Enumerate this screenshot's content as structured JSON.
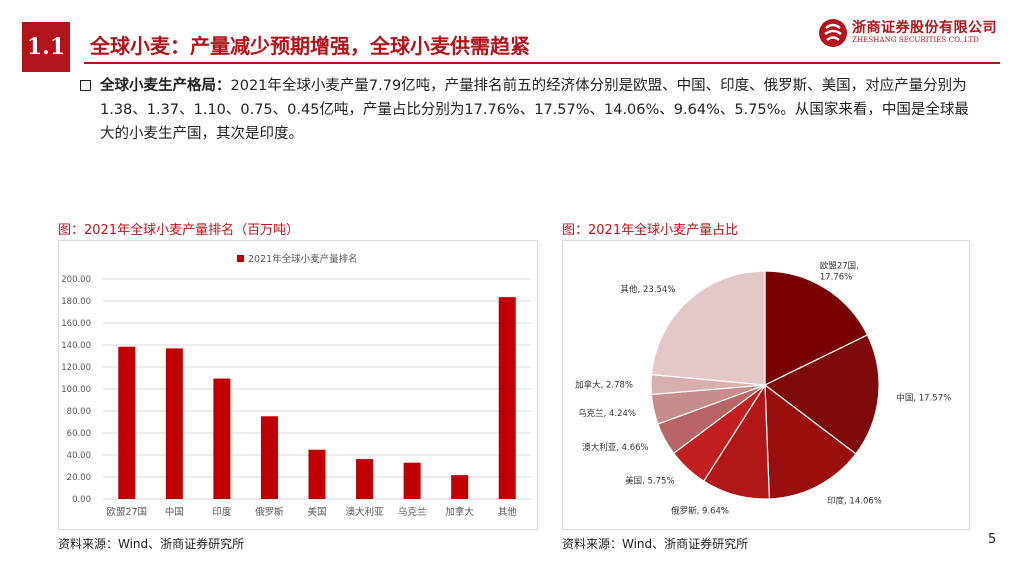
{
  "section_number": "1.1",
  "page_title": "全球小麦：产量减少预期增强，全球小麦供需趋紧",
  "logo": {
    "name_cn": "浙商证券股份有限公司",
    "name_en": "ZHESHANG SECURITIES CO.,LTD"
  },
  "bullet": {
    "heading": "全球小麦生产格局：",
    "text": "2021年全球小麦产量7.79亿吨，产量排名前五的经济体分别是欧盟、中国、印度、俄罗斯、美国，对应产量分别为1.38、1.37、1.10、0.75、0.45亿吨，产量占比分别为17.76%、17.57%、14.06%、9.64%、5.75%。从国家来看，中国是全球最大的小麦生产国，其次是印度。"
  },
  "left_figure": {
    "title": "图：2021年全球小麦产量排名（百万吨）",
    "source": "资料来源：Wind、浙商证券研究所"
  },
  "right_figure": {
    "title": "图：2021年全球小麦产量占比",
    "source": "资料来源：Wind、浙商证券研究所"
  },
  "page_number": "5",
  "colors": {
    "brand_red": "#b3141b",
    "bar_red": "#c00000"
  },
  "chart_data": [
    {
      "type": "bar",
      "categories": [
        "欧盟27国",
        "中国",
        "印度",
        "俄罗斯",
        "美国",
        "澳大利亚",
        "乌克兰",
        "加拿大",
        "其他"
      ],
      "series": [
        {
          "name": "2021年全球小麦产量排名",
          "values": [
            138.4,
            136.9,
            109.5,
            75.2,
            44.8,
            36.3,
            33.0,
            21.7,
            183.5
          ]
        }
      ],
      "yticks": [
        "0.00",
        "20.00",
        "40.00",
        "60.00",
        "80.00",
        "100.00",
        "120.00",
        "140.00",
        "160.00",
        "180.00",
        "200.00"
      ],
      "ylim": [
        0,
        200
      ],
      "grid": true,
      "legend_position": "top-left"
    },
    {
      "type": "pie",
      "slices": [
        {
          "label": "欧盟27国, 17.76%",
          "value": 17.76,
          "color": "#7a0000"
        },
        {
          "label": "中国, 17.57%",
          "value": 17.57,
          "color": "#7f0a0a"
        },
        {
          "label": "印度, 14.06%",
          "value": 14.06,
          "color": "#9b0e0e"
        },
        {
          "label": "俄罗斯, 9.64%",
          "value": 9.64,
          "color": "#b11717"
        },
        {
          "label": "美国, 5.75%",
          "value": 5.75,
          "color": "#c21f1f"
        },
        {
          "label": "澳大利亚, 4.66%",
          "value": 4.66,
          "color": "#b96565"
        },
        {
          "label": "乌克兰, 4.24%",
          "value": 4.24,
          "color": "#c78d8d"
        },
        {
          "label": "加拿大, 2.78%",
          "value": 2.78,
          "color": "#d8b0b0"
        },
        {
          "label": "其他, 23.54%",
          "value": 23.54,
          "color": "#e4c7c7"
        }
      ]
    }
  ]
}
